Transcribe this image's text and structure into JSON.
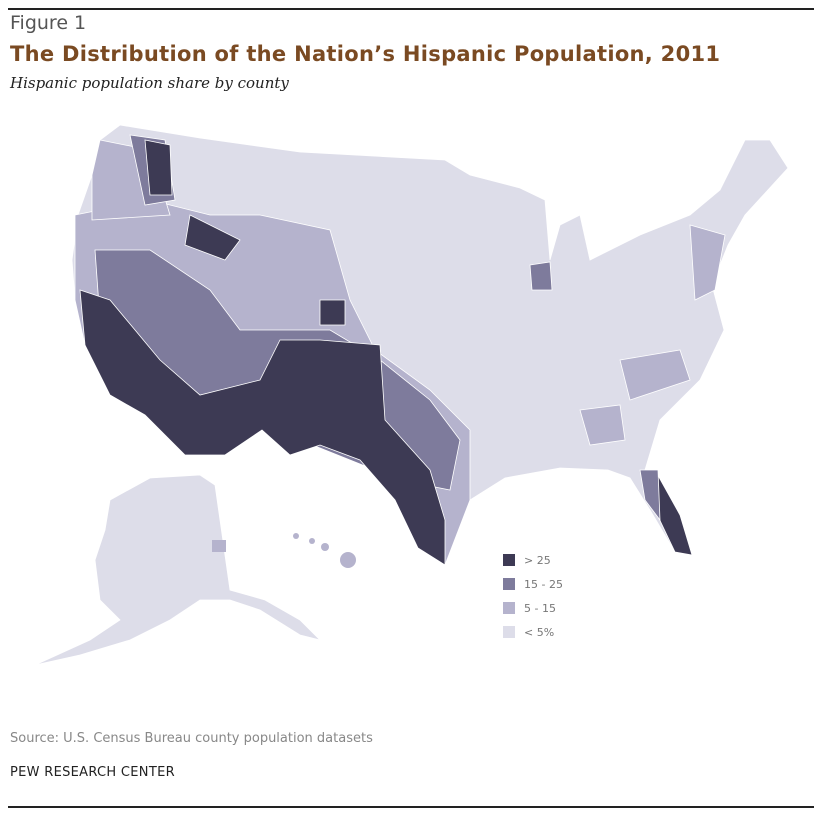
{
  "figure_label": "Figure 1",
  "title": "The Distribution of the Nation’s Hispanic Population, 2011",
  "subtitle": "Hispanic population share by county",
  "legend": [
    {
      "label": "> 25",
      "color": "#3d3a54"
    },
    {
      "label": "15 - 25",
      "color": "#7e7b9c"
    },
    {
      "label": "5 - 15",
      "color": "#b5b3cd"
    },
    {
      "label": "< 5%",
      "color": "#dddde9"
    }
  ],
  "source": "Source: U.S. Census Bureau county population datasets",
  "organization": "PEW RESEARCH CENTER"
}
